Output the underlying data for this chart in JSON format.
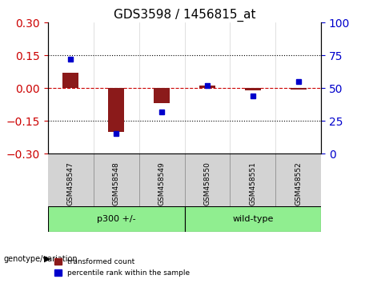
{
  "title": "GDS3598 / 1456815_at",
  "samples": [
    "GSM458547",
    "GSM458548",
    "GSM458549",
    "GSM458550",
    "GSM458551",
    "GSM458552"
  ],
  "transformed_counts": [
    0.07,
    -0.2,
    -0.07,
    0.01,
    -0.01,
    -0.005
  ],
  "percentile_ranks": [
    72,
    15,
    32,
    52,
    44,
    55
  ],
  "groups": [
    "p300 +/-",
    "p300 +/-",
    "p300 +/-",
    "wild-type",
    "wild-type",
    "wild-type"
  ],
  "group_colors": {
    "p300 +/-": "#90EE90",
    "wild-type": "#90EE90"
  },
  "ylim_left": [
    -0.3,
    0.3
  ],
  "ylim_right": [
    0,
    100
  ],
  "yticks_left": [
    -0.3,
    -0.15,
    0,
    0.15,
    0.3
  ],
  "yticks_right": [
    0,
    25,
    50,
    75,
    100
  ],
  "bar_color": "#8B1A1A",
  "dot_color": "#0000CC",
  "zero_line_color": "#CC0000",
  "grid_color": "black",
  "bg_plot": "#FFFFFF",
  "bg_label": "#D3D3D3",
  "legend_red_label": "transformed count",
  "legend_blue_label": "percentile rank within the sample",
  "genotype_label": "genotype/variation"
}
